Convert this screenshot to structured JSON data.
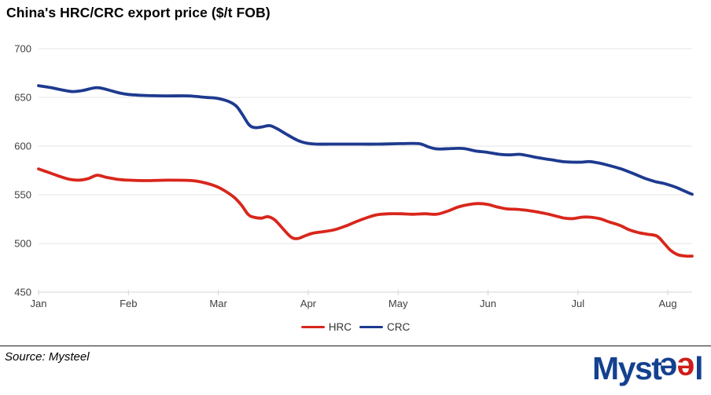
{
  "title": "China's HRC/CRC export price ($/t FOB)",
  "source_note": "Source: Mysteel",
  "legend": {
    "hrc_label": "HRC",
    "crc_label": "CRC"
  },
  "logo": {
    "part_myst": "Myst",
    "part_e1": "e",
    "part_e2": "e",
    "part_l": "l",
    "blue": "#14418f",
    "red": "#cc1d1a"
  },
  "colors": {
    "hrc_line": "#d9261c",
    "crc_line": "#1e3a8f",
    "gridline": "#e6e6e6",
    "axis_line": "#d6d6d6",
    "axis_text": "#404040"
  },
  "chart_data": {
    "type": "line",
    "title": "China's HRC/CRC export price ($/t FOB)",
    "xlabel": "",
    "ylabel": "",
    "x_unit": "month index (0 = Jan, 7 = Aug)",
    "x_ticks": [
      "Jan",
      "Feb",
      "Mar",
      "Apr",
      "May",
      "Jun",
      "Jul",
      "Aug"
    ],
    "y_ticks": [
      450,
      500,
      550,
      600,
      650,
      700
    ],
    "ylim": [
      450,
      700
    ],
    "xlim": [
      0,
      7.27
    ],
    "grid": "horizontal",
    "legend_position": "bottom-center",
    "series": [
      {
        "name": "HRC",
        "color": "#d9261c",
        "points": [
          [
            0.0,
            576.5
          ],
          [
            0.11,
            573
          ],
          [
            0.23,
            569
          ],
          [
            0.34,
            566
          ],
          [
            0.45,
            565
          ],
          [
            0.55,
            566.5
          ],
          [
            0.65,
            570
          ],
          [
            0.75,
            568
          ],
          [
            0.87,
            566
          ],
          [
            1.0,
            565
          ],
          [
            1.19,
            564.5
          ],
          [
            1.45,
            565
          ],
          [
            1.71,
            564.5
          ],
          [
            1.86,
            562
          ],
          [
            1.98,
            558.5
          ],
          [
            2.09,
            553
          ],
          [
            2.18,
            547
          ],
          [
            2.26,
            539
          ],
          [
            2.33,
            530
          ],
          [
            2.39,
            527
          ],
          [
            2.48,
            526
          ],
          [
            2.55,
            527.5
          ],
          [
            2.63,
            524
          ],
          [
            2.72,
            515
          ],
          [
            2.81,
            506.5
          ],
          [
            2.88,
            505
          ],
          [
            2.97,
            508
          ],
          [
            3.05,
            510.5
          ],
          [
            3.16,
            512
          ],
          [
            3.29,
            514
          ],
          [
            3.42,
            518
          ],
          [
            3.55,
            523
          ],
          [
            3.67,
            527
          ],
          [
            3.77,
            529.5
          ],
          [
            3.9,
            530.5
          ],
          [
            4.03,
            530.5
          ],
          [
            4.16,
            530
          ],
          [
            4.3,
            530.5
          ],
          [
            4.43,
            530
          ],
          [
            4.56,
            533.5
          ],
          [
            4.67,
            537.5
          ],
          [
            4.79,
            540
          ],
          [
            4.89,
            541
          ],
          [
            5.0,
            540
          ],
          [
            5.1,
            537.5
          ],
          [
            5.21,
            535.5
          ],
          [
            5.33,
            535
          ],
          [
            5.43,
            534
          ],
          [
            5.54,
            532.5
          ],
          [
            5.65,
            530.5
          ],
          [
            5.76,
            528
          ],
          [
            5.85,
            526
          ],
          [
            5.94,
            525.5
          ],
          [
            6.05,
            527
          ],
          [
            6.13,
            527
          ],
          [
            6.24,
            525.5
          ],
          [
            6.35,
            522
          ],
          [
            6.47,
            518.5
          ],
          [
            6.57,
            514
          ],
          [
            6.68,
            511
          ],
          [
            6.77,
            509.5
          ],
          [
            6.88,
            507.5
          ],
          [
            6.96,
            500
          ],
          [
            7.03,
            493
          ],
          [
            7.11,
            488.5
          ],
          [
            7.2,
            487
          ],
          [
            7.27,
            487
          ]
        ]
      },
      {
        "name": "CRC",
        "color": "#1e3a8f",
        "points": [
          [
            0.0,
            662
          ],
          [
            0.14,
            660
          ],
          [
            0.27,
            657.5
          ],
          [
            0.38,
            656
          ],
          [
            0.49,
            657
          ],
          [
            0.65,
            660
          ],
          [
            0.8,
            657
          ],
          [
            0.9,
            654.5
          ],
          [
            1.0,
            653
          ],
          [
            1.17,
            652
          ],
          [
            1.41,
            651.5
          ],
          [
            1.67,
            651.5
          ],
          [
            1.86,
            650
          ],
          [
            1.99,
            649
          ],
          [
            2.11,
            646
          ],
          [
            2.2,
            641
          ],
          [
            2.27,
            632
          ],
          [
            2.34,
            622
          ],
          [
            2.4,
            619
          ],
          [
            2.48,
            619.5
          ],
          [
            2.57,
            621
          ],
          [
            2.65,
            618
          ],
          [
            2.76,
            612
          ],
          [
            2.88,
            606
          ],
          [
            2.98,
            603
          ],
          [
            3.09,
            602
          ],
          [
            3.25,
            602
          ],
          [
            3.51,
            602
          ],
          [
            3.77,
            602
          ],
          [
            4.03,
            602.5
          ],
          [
            4.23,
            602.5
          ],
          [
            4.34,
            599
          ],
          [
            4.44,
            597
          ],
          [
            4.6,
            597.5
          ],
          [
            4.73,
            597.5
          ],
          [
            4.86,
            595
          ],
          [
            5.0,
            593.5
          ],
          [
            5.13,
            591.5
          ],
          [
            5.24,
            591
          ],
          [
            5.35,
            591.5
          ],
          [
            5.45,
            590
          ],
          [
            5.56,
            588
          ],
          [
            5.7,
            586
          ],
          [
            5.83,
            584
          ],
          [
            5.94,
            583.5
          ],
          [
            6.04,
            583.5
          ],
          [
            6.13,
            584
          ],
          [
            6.24,
            582.5
          ],
          [
            6.35,
            580
          ],
          [
            6.48,
            576.5
          ],
          [
            6.61,
            572
          ],
          [
            6.74,
            567
          ],
          [
            6.86,
            563.5
          ],
          [
            6.96,
            561.5
          ],
          [
            7.08,
            558
          ],
          [
            7.18,
            554
          ],
          [
            7.27,
            550.5
          ]
        ]
      }
    ]
  }
}
